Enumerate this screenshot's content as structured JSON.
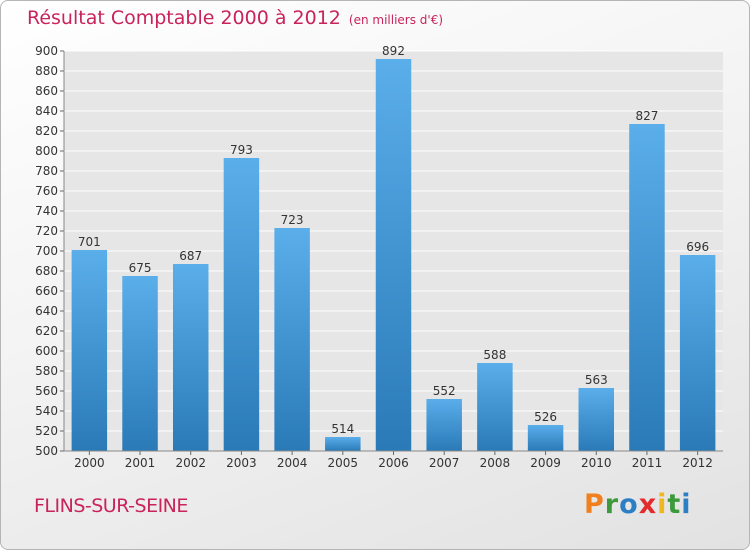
{
  "title": "Résultat Comptable 2000 à 2012",
  "title_unit": "(en milliers d'€)",
  "commune": "FLINS-SUR-SEINE",
  "logo": {
    "letters": [
      "P",
      "r",
      "o",
      "x",
      "i",
      "t",
      "i"
    ],
    "colors": [
      "#f0801e",
      "#3c9a3c",
      "#2c7fc4",
      "#e42b2b",
      "#f0b81e",
      "#3c9a3c",
      "#2c7fc4"
    ]
  },
  "colors": {
    "bar_top": "#5aaeea",
    "bar_bottom": "#2a7ab8",
    "accent": "#c8245a"
  },
  "chart_data": {
    "type": "bar",
    "title": "Résultat Comptable 2000 à 2012",
    "xlabel": "",
    "ylabel": "",
    "ylim": [
      500,
      900
    ],
    "y_ticks": [
      500,
      520,
      540,
      560,
      580,
      600,
      620,
      640,
      660,
      680,
      700,
      720,
      740,
      760,
      780,
      800,
      820,
      840,
      860,
      880,
      900
    ],
    "grid": true,
    "categories": [
      "2000",
      "2001",
      "2002",
      "2003",
      "2004",
      "2005",
      "2006",
      "2007",
      "2008",
      "2009",
      "2010",
      "2011",
      "2012"
    ],
    "values": [
      701,
      675,
      687,
      793,
      723,
      514,
      892,
      552,
      588,
      526,
      563,
      827,
      696
    ]
  }
}
